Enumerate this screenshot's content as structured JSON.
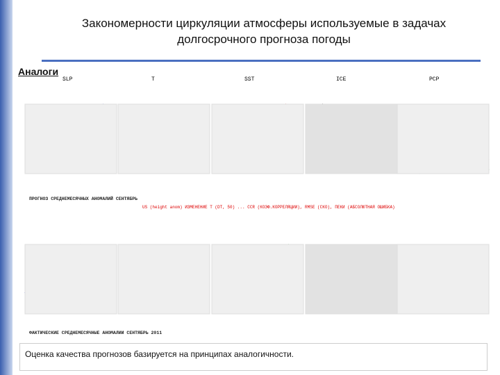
{
  "slide": {
    "title_lines": [
      "Закономерности циркуляции атмосферы используемые в задачах",
      "долгосрочного прогноза погоды"
    ],
    "section_label": "Аналоги",
    "column_labels": [
      "SLP",
      "T",
      "SST",
      "ICE",
      "PCP"
    ],
    "forecast_caption": "ПРОГНОЗ СРЕДНЕМЕСЯЧНЫХ АНОМАЛИЙ СЕНТЯБРЬ",
    "metrics_caption": "US (height anom) ИЗМЕНЕНИЕ T (DT, 50) ... CCR (КОЭФ.КОРРЕЛЯЦИИ), RMSE (СКО), ПЕКИ (АБСОЛЮТНАЯ ОШИБКА)",
    "actual_caption": "ФАКТИЧЕСКИЕ СРЕДНЕМЕСЯЧНЫЕ АНОМАЛИИ СЕНТЯБРЬ 2011",
    "footer": "Оценка качества прогнозов базируется на принципах аналогичности."
  }
}
